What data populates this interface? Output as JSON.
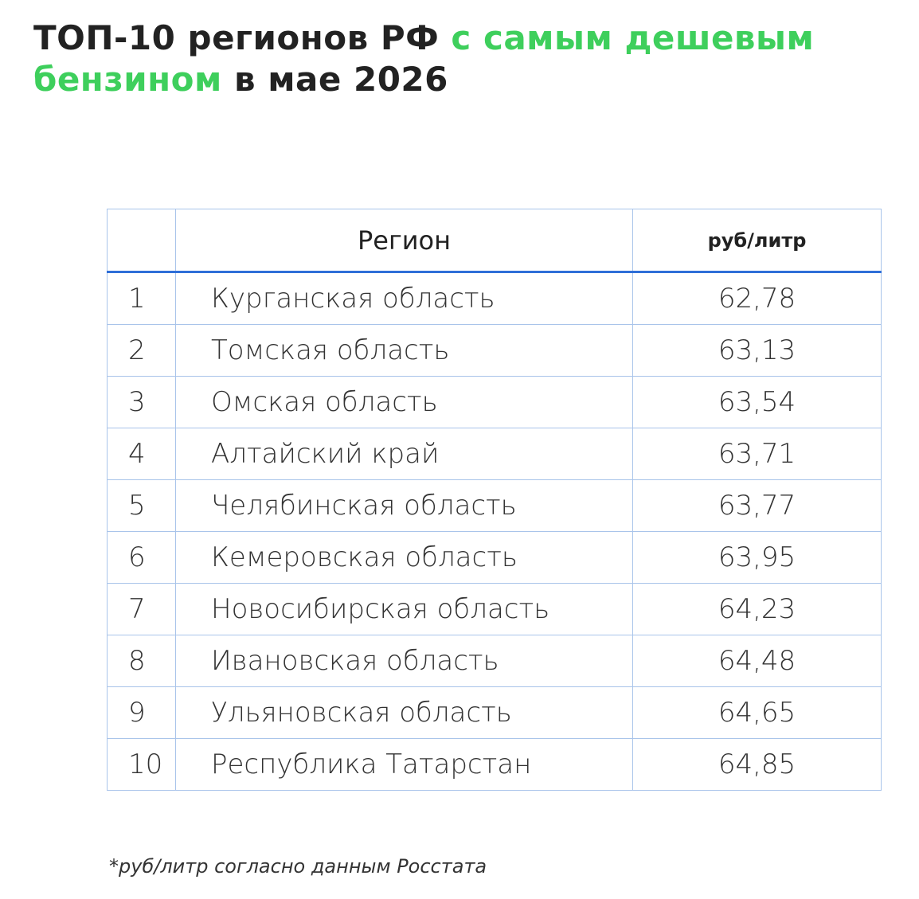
{
  "title": [
    "ТОП-10 регионов РФ",
    "с самым дешевым",
    "бензином",
    "в мае 2026"
  ],
  "table": {
    "header": [
      "Регион",
      "руб/литр"
    ],
    "rows": [
      [
        "1",
        "Курганская область",
        "62,78"
      ],
      [
        "2",
        "Томская область",
        "63,13"
      ],
      [
        "3",
        "Омская область",
        "63,54"
      ],
      [
        "4",
        "Алтайский край",
        "63,71"
      ],
      [
        "5",
        "Челябинская область",
        "63,77"
      ],
      [
        "6",
        "Кемеровская область",
        "63,95"
      ],
      [
        "7",
        "Новосибирская область",
        "64,23"
      ],
      [
        "8",
        "Ивановская область",
        "64,48"
      ],
      [
        "9",
        "Ульяновская область",
        "64,65"
      ],
      [
        "10",
        "Республика Татарстан",
        "64,85"
      ]
    ]
  },
  "footnote": "*руб/литр согласно данным Росстата"
}
